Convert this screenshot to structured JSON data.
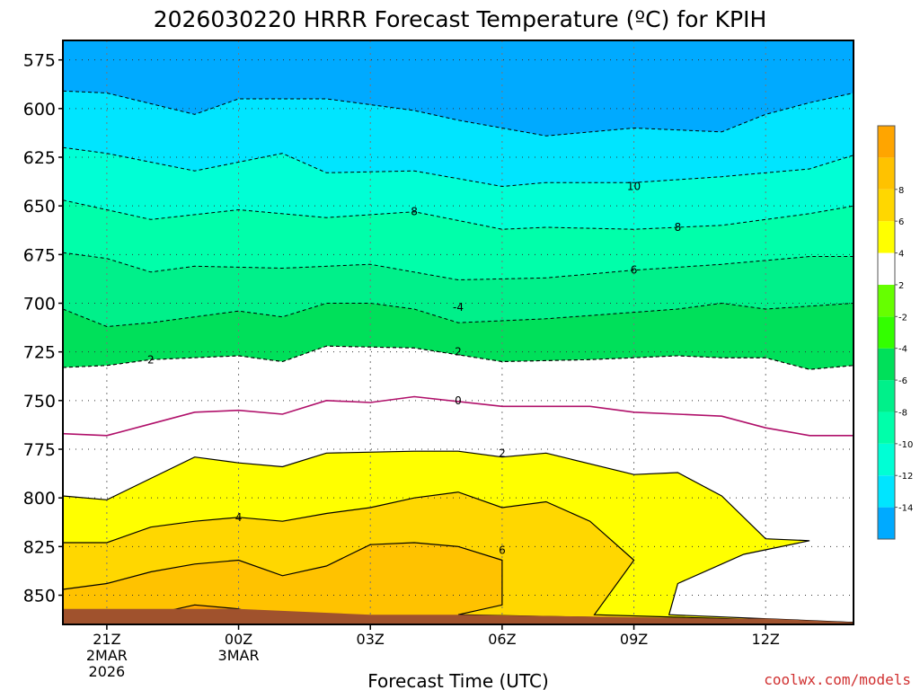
{
  "chart_data": {
    "type": "heatmap",
    "title": "2026030220 HRRR Forecast Temperature (ºC) for KPIH",
    "xlabel": "Forecast Time (UTC)",
    "ylabel": "",
    "watermark": "coolwx.com/models",
    "x_ticks": [
      {
        "hour": 0,
        "label": "21Z",
        "sub1": "2MAR",
        "sub2": "2026"
      },
      {
        "hour": 3,
        "label": "00Z",
        "sub1": "3MAR",
        "sub2": ""
      },
      {
        "hour": 6,
        "label": "03Z",
        "sub1": "",
        "sub2": ""
      },
      {
        "hour": 9,
        "label": "06Z",
        "sub1": "",
        "sub2": ""
      },
      {
        "hour": 12,
        "label": "09Z",
        "sub1": "",
        "sub2": ""
      },
      {
        "hour": 15,
        "label": "12Z",
        "sub1": "",
        "sub2": ""
      }
    ],
    "xlim": [
      -1,
      17
    ],
    "ylim": [
      865,
      565
    ],
    "y_ticks": [
      575,
      600,
      625,
      650,
      675,
      700,
      725,
      750,
      775,
      800,
      825,
      850
    ],
    "colorbar": {
      "levels": [
        -16,
        -14,
        -12,
        -10,
        -8,
        -6,
        -4,
        -2,
        2,
        4,
        6,
        8,
        10
      ],
      "colors": [
        "#00aaff",
        "#00e5ff",
        "#00ffd5",
        "#00ffaa",
        "#00f08a",
        "#00e05a",
        "#33ff00",
        "#66ff00",
        "#ffffff",
        "#ffff00",
        "#ffd700",
        "#ffc200",
        "#ffa500"
      ],
      "tick_labels": [
        "-14",
        "-12",
        "-10",
        "-8",
        "-6",
        "-4",
        "-2",
        "2",
        "4",
        "6",
        "8"
      ]
    },
    "contours": [
      {
        "level": -16,
        "label": "",
        "fill": "#00aaff",
        "points": [
          [
            -1,
            567
          ],
          [
            3,
            565
          ],
          [
            6,
            574
          ],
          [
            8,
            584
          ],
          [
            10,
            578
          ],
          [
            12,
            576
          ],
          [
            14,
            575
          ],
          [
            16,
            566
          ],
          [
            17,
            565
          ]
        ]
      },
      {
        "level": -14,
        "label": "",
        "fill": "#00e5ff",
        "points": [
          [
            -1,
            591
          ],
          [
            0,
            592
          ],
          [
            2,
            603
          ],
          [
            3,
            595
          ],
          [
            5,
            595
          ],
          [
            7,
            601
          ],
          [
            8,
            606
          ],
          [
            10,
            614
          ],
          [
            12,
            610
          ],
          [
            14,
            612
          ],
          [
            15,
            603
          ],
          [
            16,
            597
          ],
          [
            17,
            592
          ]
        ]
      },
      {
        "level": -12,
        "label": "",
        "fill": "#00ffd5",
        "points": [
          [
            -1,
            620
          ],
          [
            0,
            623
          ],
          [
            2,
            632
          ],
          [
            4,
            623
          ],
          [
            5,
            633
          ],
          [
            7,
            632
          ],
          [
            9,
            640
          ],
          [
            10,
            638
          ],
          [
            12,
            638
          ],
          [
            14,
            635
          ],
          [
            16,
            631
          ],
          [
            17,
            624
          ]
        ]
      },
      {
        "level": -10,
        "label": "10",
        "fill": "#00ffaa",
        "points": [
          [
            -1,
            647
          ],
          [
            1,
            657
          ],
          [
            3,
            652
          ],
          [
            5,
            656
          ],
          [
            7,
            653
          ],
          [
            9,
            662
          ],
          [
            10,
            661
          ],
          [
            12,
            662
          ],
          [
            14,
            660
          ],
          [
            16,
            654
          ],
          [
            17,
            650
          ]
        ]
      },
      {
        "level": -8,
        "label": "8",
        "fill": "#00f08a",
        "points": [
          [
            -1,
            674
          ],
          [
            0,
            677
          ],
          [
            1,
            684
          ],
          [
            2,
            681
          ],
          [
            4,
            682
          ],
          [
            6,
            680
          ],
          [
            8,
            688
          ],
          [
            10,
            687
          ],
          [
            12,
            683
          ],
          [
            14,
            680
          ],
          [
            16,
            676
          ],
          [
            17,
            676
          ]
        ]
      },
      {
        "level": -6,
        "label": "6",
        "fill": "#00e05a",
        "points": [
          [
            -1,
            703
          ],
          [
            0,
            712
          ],
          [
            1,
            710
          ],
          [
            3,
            704
          ],
          [
            4,
            707
          ],
          [
            5,
            700
          ],
          [
            6,
            700
          ],
          [
            7,
            703
          ],
          [
            8,
            710
          ],
          [
            10,
            708
          ],
          [
            13,
            703
          ],
          [
            14,
            700
          ],
          [
            15,
            703
          ],
          [
            17,
            700
          ]
        ]
      },
      {
        "level": -4,
        "label": "4",
        "fill": "#33ff00",
        "points": [
          [
            -1,
            733
          ],
          [
            0,
            732
          ],
          [
            1,
            729
          ],
          [
            3,
            727
          ],
          [
            4,
            730
          ],
          [
            5,
            722
          ],
          [
            7,
            723
          ],
          [
            9,
            730
          ],
          [
            11,
            729
          ],
          [
            13,
            727
          ],
          [
            14,
            728
          ],
          [
            15,
            728
          ],
          [
            16,
            734
          ],
          [
            17,
            732
          ]
        ]
      },
      {
        "level": -2,
        "label": "2",
        "fill": "#ffffff",
        "points": [
          [
            -1,
            733
          ],
          [
            0,
            732
          ],
          [
            1,
            729
          ],
          [
            3,
            727
          ],
          [
            4,
            730
          ],
          [
            5,
            722
          ],
          [
            7,
            723
          ],
          [
            9,
            730
          ],
          [
            11,
            729
          ],
          [
            13,
            727
          ],
          [
            14,
            728
          ],
          [
            15,
            728
          ],
          [
            16,
            734
          ],
          [
            17,
            732
          ]
        ]
      },
      {
        "level": 0,
        "label": "0",
        "fill": "#ffffff",
        "points": [
          [
            -1,
            767
          ],
          [
            0,
            768
          ],
          [
            1,
            762
          ],
          [
            2,
            756
          ],
          [
            3,
            755
          ],
          [
            4,
            757
          ],
          [
            5,
            750
          ],
          [
            6,
            751
          ],
          [
            7,
            748
          ],
          [
            9,
            753
          ],
          [
            11,
            753
          ],
          [
            12,
            756
          ],
          [
            14,
            758
          ],
          [
            15,
            764
          ],
          [
            16,
            768
          ],
          [
            17,
            768
          ]
        ]
      },
      {
        "level": 2,
        "label": "2",
        "fill": "#ffff00",
        "points": [
          [
            -1,
            799
          ],
          [
            0,
            801
          ],
          [
            1,
            790
          ],
          [
            2,
            779
          ],
          [
            3,
            782
          ],
          [
            4,
            784
          ],
          [
            5,
            777
          ],
          [
            7,
            776
          ],
          [
            8,
            776
          ],
          [
            9,
            779
          ],
          [
            10,
            777
          ],
          [
            12,
            788
          ],
          [
            13,
            787
          ],
          [
            14,
            799
          ],
          [
            15,
            821
          ],
          [
            16,
            822
          ],
          [
            14.5,
            829
          ],
          [
            13,
            844
          ],
          [
            12.8,
            860
          ],
          [
            17,
            864
          ]
        ]
      },
      {
        "level": 4,
        "label": "4",
        "fill": "#ffd700",
        "points": [
          [
            -1,
            823
          ],
          [
            0,
            823
          ],
          [
            1,
            815
          ],
          [
            2,
            812
          ],
          [
            3,
            810
          ],
          [
            4,
            812
          ],
          [
            5,
            808
          ],
          [
            6,
            805
          ],
          [
            7,
            800
          ],
          [
            8,
            797
          ],
          [
            9,
            805
          ],
          [
            10,
            802
          ],
          [
            11,
            812
          ],
          [
            12,
            832
          ],
          [
            11.1,
            860
          ],
          [
            17,
            864
          ]
        ]
      },
      {
        "level": 6,
        "label": "6",
        "fill": "#ffc200",
        "points": [
          [
            -1,
            847
          ],
          [
            0,
            844
          ],
          [
            1,
            838
          ],
          [
            2,
            834
          ],
          [
            3,
            832
          ],
          [
            4,
            840
          ],
          [
            5,
            835
          ],
          [
            6,
            824
          ],
          [
            7,
            823
          ],
          [
            8,
            825
          ],
          [
            9,
            832
          ],
          [
            9,
            855
          ],
          [
            8,
            860
          ],
          [
            17,
            864
          ]
        ]
      },
      {
        "level": 8,
        "label": "",
        "fill": "#ffa500",
        "points": [
          [
            0,
            864
          ],
          [
            1,
            860
          ],
          [
            2,
            855
          ],
          [
            3,
            857
          ],
          [
            4,
            864
          ]
        ]
      }
    ],
    "terrain": {
      "color": "#a0522d",
      "points": [
        [
          -1,
          857
        ],
        [
          3,
          857
        ],
        [
          6,
          860
        ],
        [
          8,
          860
        ],
        [
          11,
          861
        ],
        [
          14,
          862
        ],
        [
          15,
          862
        ],
        [
          17,
          864
        ]
      ]
    },
    "labels": [
      {
        "text": "10",
        "x": 12,
        "y": 640
      },
      {
        "text": "8",
        "x": 7,
        "y": 653
      },
      {
        "text": "8",
        "x": 13,
        "y": 661
      },
      {
        "text": "6",
        "x": 12,
        "y": 683
      },
      {
        "text": "-4",
        "x": 8,
        "y": 702
      },
      {
        "text": "2",
        "x": 8,
        "y": 725
      },
      {
        "text": "2",
        "x": 1,
        "y": 729
      },
      {
        "text": "0",
        "x": 8,
        "y": 750
      },
      {
        "text": "2",
        "x": 9,
        "y": 777
      },
      {
        "text": "4",
        "x": 3,
        "y": 810
      },
      {
        "text": "6",
        "x": 9,
        "y": 827
      }
    ],
    "grid": true
  }
}
